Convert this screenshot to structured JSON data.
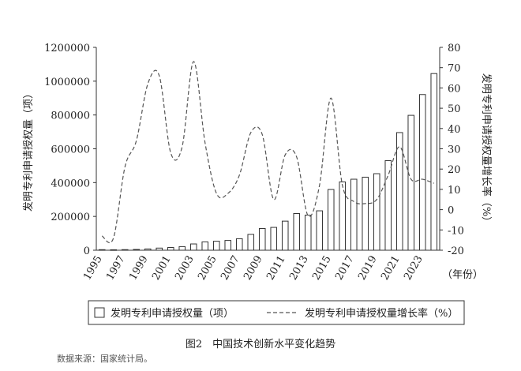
{
  "caption": "图2　中国技术创新水平变化趋势",
  "source": "数据来源：国家统计局。",
  "chart_data": {
    "type": "bar",
    "x": [
      1995,
      1996,
      1997,
      1998,
      1999,
      2000,
      2001,
      2002,
      2003,
      2004,
      2005,
      2006,
      2007,
      2008,
      2009,
      2010,
      2011,
      2012,
      2013,
      2014,
      2015,
      2016,
      2017,
      2018,
      2019,
      2020,
      2021,
      2022,
      2023,
      2024
    ],
    "x_tick_labels": [
      "1995",
      "1997",
      "1999",
      "2001",
      "2003",
      "2005",
      "2007",
      "2009",
      "2011",
      "2013",
      "2015",
      "2017",
      "2019",
      "2021",
      "2023"
    ],
    "x_unit_label": "（年份）",
    "series": [
      {
        "name": "发明专利申请授权量（项）",
        "type": "bar",
        "axis": "left",
        "values": [
          3400,
          2900,
          3500,
          4700,
          7600,
          12700,
          16300,
          21500,
          37200,
          49400,
          53300,
          57800,
          68000,
          93700,
          128500,
          135100,
          172100,
          217100,
          207700,
          233200,
          359300,
          404200,
          420100,
          432100,
          452800,
          530100,
          696000,
          798000,
          921000,
          1045000
        ]
      },
      {
        "name": "发明专利申请授权量增长率（%）",
        "type": "line",
        "axis": "right",
        "style": "dashed",
        "values": [
          -13,
          -14,
          21,
          34,
          62,
          66,
          28,
          31,
          73,
          33,
          8,
          8,
          17,
          38,
          37,
          5,
          27,
          26,
          -3,
          12,
          55,
          12,
          4,
          3,
          5,
          17,
          31,
          15,
          15,
          13
        ]
      }
    ],
    "y_left": {
      "label": "发明专利申请授权量（项）",
      "ticks": [
        "0",
        "200000",
        "400000",
        "600000",
        "800000",
        "1000000",
        "1200000"
      ],
      "range": [
        0,
        1200000
      ]
    },
    "y_right": {
      "label": "发明专利申请授权量增长率（%）",
      "ticks": [
        "-20",
        "-10",
        "0",
        "10",
        "20",
        "30",
        "40",
        "50",
        "60",
        "70",
        "80"
      ],
      "range": [
        -20,
        80
      ]
    },
    "legend": {
      "position": "bottom"
    }
  }
}
